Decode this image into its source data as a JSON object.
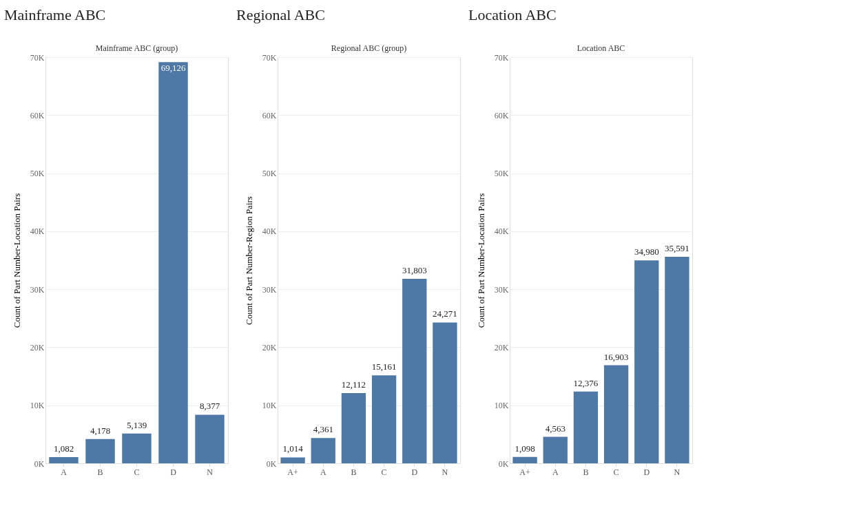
{
  "chart_data": [
    {
      "type": "bar",
      "title": "Mainframe ABC",
      "subtitle": "Mainframe ABC (group)",
      "ylabel": "Count of Part Number-Location Pairs",
      "categories": [
        "A",
        "B",
        "C",
        "D",
        "N"
      ],
      "values": [
        1082,
        4178,
        5139,
        69126,
        8377
      ],
      "value_labels": [
        "1,082",
        "4,178",
        "5,139",
        "69,126",
        "8,377"
      ],
      "color": "#4e79a7",
      "ylim": [
        0,
        70000
      ],
      "yticks": [
        {
          "value": 0,
          "label": "0K"
        },
        {
          "value": 10000,
          "label": "10K"
        },
        {
          "value": 20000,
          "label": "20K"
        },
        {
          "value": 30000,
          "label": "30K"
        },
        {
          "value": 40000,
          "label": "40K"
        },
        {
          "value": 50000,
          "label": "50K"
        },
        {
          "value": 60000,
          "label": "60K"
        },
        {
          "value": 70000,
          "label": "70K"
        }
      ],
      "grid": "y"
    },
    {
      "type": "bar",
      "title": "Regional ABC",
      "subtitle": "Regional ABC (group)",
      "ylabel": "Count of Part Number-Region Pairs",
      "categories": [
        "A+",
        "A",
        "B",
        "C",
        "D",
        "N"
      ],
      "values": [
        1014,
        4361,
        12112,
        15161,
        31803,
        24271
      ],
      "value_labels": [
        "1,014",
        "4,361",
        "12,112",
        "15,161",
        "31,803",
        "24,271"
      ],
      "color": "#4e79a7",
      "ylim": [
        0,
        70000
      ],
      "yticks": [
        {
          "value": 0,
          "label": "0K"
        },
        {
          "value": 10000,
          "label": "10K"
        },
        {
          "value": 20000,
          "label": "20K"
        },
        {
          "value": 30000,
          "label": "30K"
        },
        {
          "value": 40000,
          "label": "40K"
        },
        {
          "value": 50000,
          "label": "50K"
        },
        {
          "value": 60000,
          "label": "60K"
        },
        {
          "value": 70000,
          "label": "70K"
        }
      ],
      "grid": "y"
    },
    {
      "type": "bar",
      "title": "Location ABC",
      "subtitle": "Location ABC",
      "ylabel": "Count of Part Number-Location Pairs",
      "categories": [
        "A+",
        "A",
        "B",
        "C",
        "D",
        "N"
      ],
      "values": [
        1098,
        4563,
        12376,
        16903,
        34980,
        35591
      ],
      "value_labels": [
        "1,098",
        "4,563",
        "12,376",
        "16,903",
        "34,980",
        "35,591"
      ],
      "color": "#4e79a7",
      "ylim": [
        0,
        70000
      ],
      "yticks": [
        {
          "value": 0,
          "label": "0K"
        },
        {
          "value": 10000,
          "label": "10K"
        },
        {
          "value": 20000,
          "label": "20K"
        },
        {
          "value": 30000,
          "label": "30K"
        },
        {
          "value": 40000,
          "label": "40K"
        },
        {
          "value": 50000,
          "label": "50K"
        },
        {
          "value": 60000,
          "label": "60K"
        },
        {
          "value": 70000,
          "label": "70K"
        }
      ],
      "grid": "y"
    }
  ]
}
